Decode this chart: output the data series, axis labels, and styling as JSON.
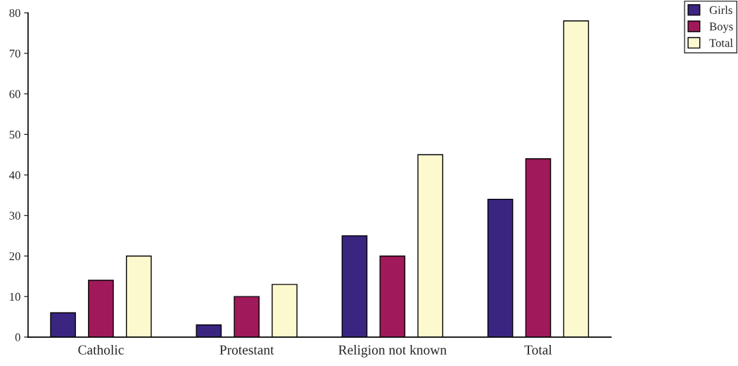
{
  "chart_data": {
    "type": "bar",
    "categories": [
      "Catholic",
      "Protestant",
      "Religion not known",
      "Total"
    ],
    "series": [
      {
        "name": "Girls",
        "color": "#3a2580",
        "values": [
          6,
          3,
          25,
          34
        ]
      },
      {
        "name": "Boys",
        "color": "#a0195a",
        "values": [
          14,
          10,
          20,
          44
        ]
      },
      {
        "name": "Total",
        "color": "#fdf9cf",
        "values": [
          20,
          13,
          45,
          78
        ]
      }
    ],
    "ylim": [
      0,
      80
    ],
    "yticks": [
      0,
      10,
      20,
      30,
      40,
      50,
      60,
      70,
      80
    ],
    "grid": false,
    "legend": "top right"
  }
}
